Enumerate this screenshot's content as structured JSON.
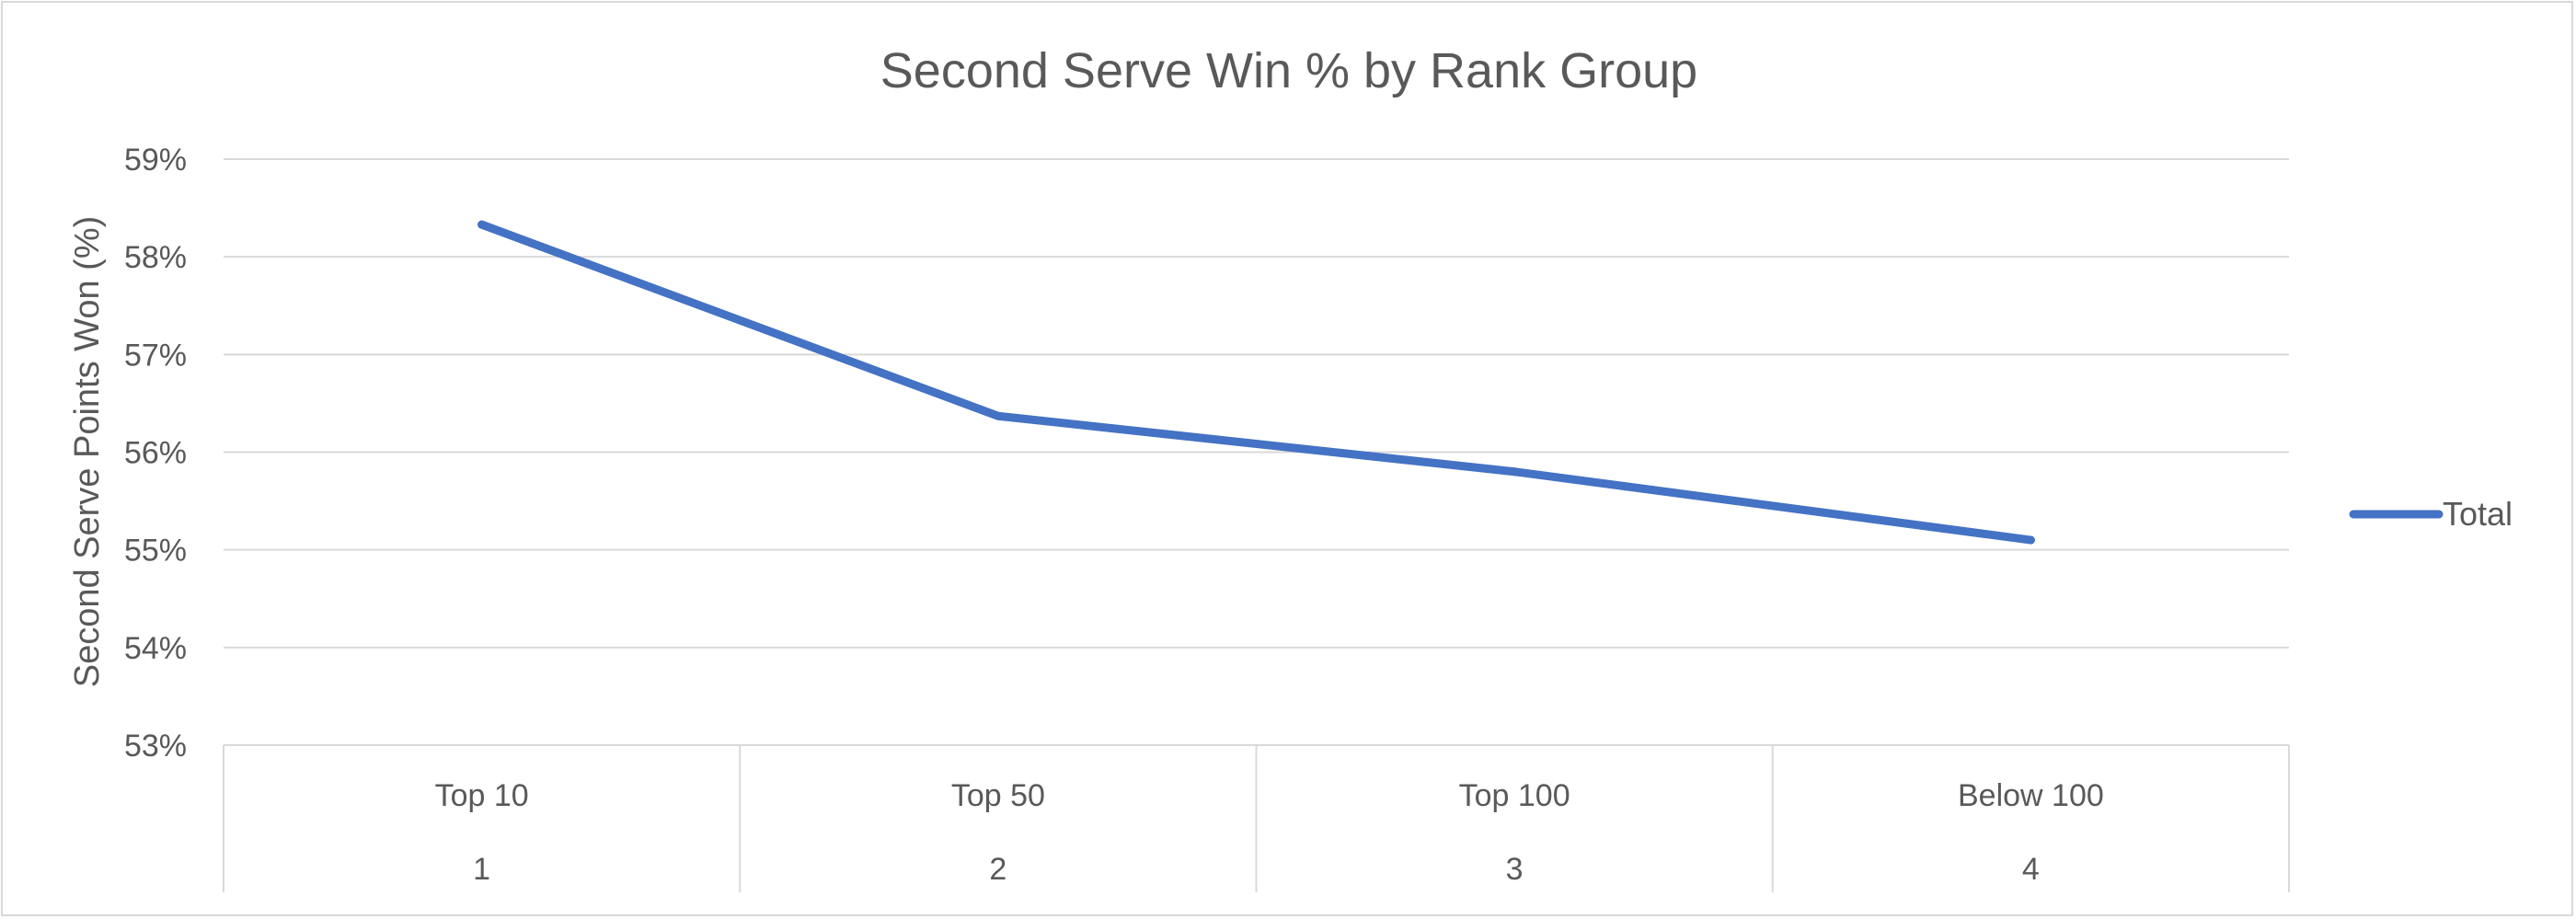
{
  "chart_data": {
    "type": "line",
    "title": "Second Serve Win % by Rank Group",
    "xlabel": "",
    "ylabel": "Second Serve Points Won (%)",
    "categories": [
      "Top 10",
      "Top 50",
      "Top 100",
      "Below 100"
    ],
    "category_index_labels": [
      "1",
      "2",
      "3",
      "4"
    ],
    "series": [
      {
        "name": "Total",
        "values": [
          58.33,
          56.37,
          55.8,
          55.1
        ]
      }
    ],
    "ylim": [
      53,
      59
    ],
    "yticks": [
      "53%",
      "54%",
      "55%",
      "56%",
      "57%",
      "58%",
      "59%"
    ],
    "grid": true,
    "legend_position": "right",
    "colors": {
      "series": "#4472c4",
      "grid": "#d9d9d9",
      "text": "#595959"
    }
  }
}
